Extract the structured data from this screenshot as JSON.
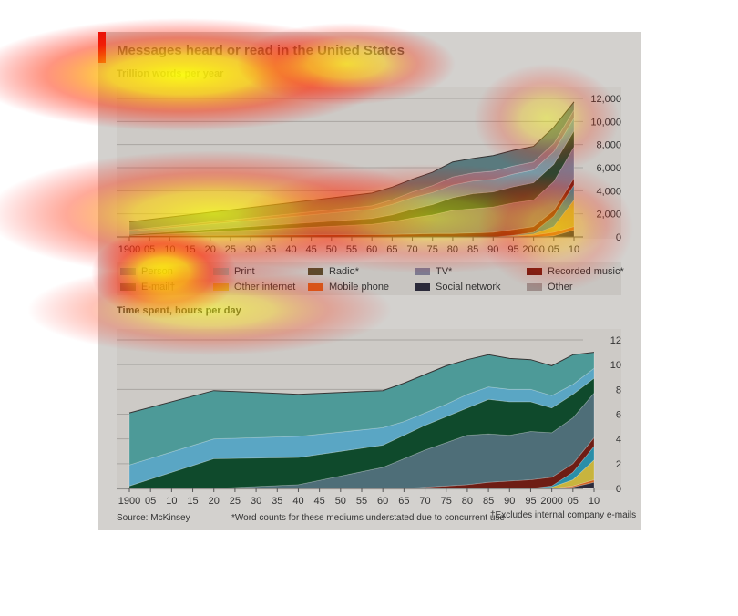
{
  "title": "Messages heard or read in the United States",
  "source": "Source: McKinsey",
  "footnote_star": "*Word counts for these mediums understated due to concurrent use",
  "footnote_dagger": "†Excludes internal company e-mails",
  "legend": [
    {
      "label": "Person",
      "color": "#79909a"
    },
    {
      "label": "Print",
      "color": "#8cc0b8"
    },
    {
      "label": "Radio*",
      "color": "#5c4a2c"
    },
    {
      "label": "TV*",
      "color": "#7d7a90"
    },
    {
      "label": "Recorded music*",
      "color": "#6e1d14"
    },
    {
      "label": "E-mail†",
      "color": "#6a8a6c"
    },
    {
      "label": "Other internet",
      "color": "#c8b43e"
    },
    {
      "label": "Mobile phone",
      "color": "#d0601e"
    },
    {
      "label": "Social network",
      "color": "#2b2a3a"
    },
    {
      "label": "Other",
      "color": "#9d8d8a"
    }
  ],
  "chart_data": [
    {
      "type": "area",
      "subtitle": "Trillion words per year",
      "stacked": true,
      "x": [
        1900,
        1960,
        1965,
        1970,
        1975,
        1980,
        1985,
        1990,
        1995,
        2000,
        2005,
        2010
      ],
      "x_tick_labels": [
        "1900",
        "05",
        "10",
        "15",
        "20",
        "25",
        "30",
        "35",
        "40",
        "45",
        "50",
        "55",
        "60",
        "65",
        "70",
        "75",
        "80",
        "85",
        "90",
        "95",
        "2000",
        "05",
        "10"
      ],
      "y_ticks": [
        "0",
        "2,000",
        "4,000",
        "6,000",
        "8,000",
        "10,000",
        "12,000"
      ],
      "ylim": [
        0,
        12000
      ],
      "series": [
        {
          "name": "Social network",
          "color": "#2b2a3a",
          "values": [
            0,
            0,
            0,
            0,
            0,
            0,
            0,
            0,
            0,
            0,
            100,
            600
          ]
        },
        {
          "name": "Mobile phone",
          "color": "#d0601e",
          "values": [
            0,
            0,
            0,
            0,
            0,
            0,
            0,
            0,
            50,
            150,
            300,
            300
          ]
        },
        {
          "name": "Other internet",
          "color": "#c8b43e",
          "values": [
            0,
            0,
            0,
            0,
            0,
            0,
            0,
            0,
            50,
            100,
            500,
            2300
          ]
        },
        {
          "name": "E-mail†",
          "color": "#2a8ea8",
          "values": [
            0,
            0,
            0,
            0,
            0,
            0,
            0,
            0,
            50,
            150,
            900,
            1300
          ]
        },
        {
          "name": "Recorded music*",
          "color": "#6e1d14",
          "values": [
            100,
            200,
            220,
            250,
            300,
            300,
            350,
            400,
            500,
            500,
            500,
            600
          ]
        },
        {
          "name": "TV*",
          "color": "#7d7a90",
          "values": [
            0,
            900,
            1100,
            1400,
            1600,
            2000,
            2100,
            2200,
            2300,
            2300,
            2500,
            2700
          ]
        },
        {
          "name": "Radio*",
          "color": "#1e4a34",
          "values": [
            100,
            500,
            600,
            750,
            900,
            1100,
            1300,
            1300,
            1400,
            1500,
            1500,
            1400
          ]
        },
        {
          "name": "Print",
          "color": "#72a0ad",
          "values": [
            300,
            800,
            900,
            1000,
            1050,
            1100,
            1100,
            1100,
            1100,
            1100,
            1100,
            1100
          ]
        },
        {
          "name": "Other",
          "color": "#8a7d8c",
          "values": [
            100,
            300,
            400,
            500,
            600,
            700,
            700,
            700,
            700,
            700,
            700,
            700
          ]
        },
        {
          "name": "Person",
          "color": "#5a7a7e",
          "values": [
            700,
            1100,
            1100,
            1100,
            1150,
            1300,
            1250,
            1350,
            1350,
            1350,
            1400,
            700
          ]
        }
      ]
    },
    {
      "type": "area",
      "subtitle": "Time spent, hours per day",
      "stacked": true,
      "x": [
        1900,
        1920,
        1940,
        1960,
        1965,
        1970,
        1975,
        1980,
        1985,
        1990,
        1995,
        2000,
        2005,
        2010
      ],
      "x_tick_labels": [
        "1900",
        "05",
        "10",
        "15",
        "20",
        "25",
        "30",
        "35",
        "40",
        "45",
        "50",
        "55",
        "60",
        "65",
        "70",
        "75",
        "80",
        "85",
        "90",
        "95",
        "2000",
        "05",
        "10"
      ],
      "y_ticks": [
        "0",
        "2",
        "4",
        "6",
        "8",
        "10",
        "12"
      ],
      "ylim": [
        0,
        12
      ],
      "series": [
        {
          "name": "Social network",
          "color": "#2b2a3a",
          "values": [
            0,
            0,
            0,
            0,
            0,
            0,
            0,
            0,
            0,
            0,
            0,
            0,
            0.1,
            0.5
          ]
        },
        {
          "name": "Mobile phone",
          "color": "#d0601e",
          "values": [
            0,
            0,
            0,
            0,
            0,
            0,
            0,
            0,
            0,
            0,
            0,
            0,
            0.1,
            0.2
          ]
        },
        {
          "name": "Other internet",
          "color": "#c8b43e",
          "values": [
            0,
            0,
            0,
            0,
            0,
            0,
            0,
            0,
            0,
            0,
            0,
            0.1,
            0.5,
            1.6
          ]
        },
        {
          "name": "E-mail†",
          "color": "#2a8ea8",
          "values": [
            0,
            0,
            0,
            0,
            0,
            0,
            0,
            0,
            0,
            0,
            0,
            0.1,
            0.6,
            1.1
          ]
        },
        {
          "name": "Recorded music*",
          "color": "#6e1d14",
          "values": [
            0,
            0,
            0,
            0,
            0,
            0.1,
            0.2,
            0.3,
            0.5,
            0.6,
            0.7,
            0.7,
            0.7,
            0.7
          ]
        },
        {
          "name": "TV*",
          "color": "#4e6e78",
          "values": [
            0,
            0,
            0.3,
            1.7,
            2.4,
            3.0,
            3.5,
            4.0,
            3.9,
            3.7,
            3.9,
            3.6,
            3.7,
            3.6
          ]
        },
        {
          "name": "Radio*",
          "color": "#0f4a2c",
          "values": [
            0.2,
            2.4,
            2.2,
            1.8,
            1.9,
            2.0,
            2.1,
            2.2,
            2.8,
            2.7,
            2.4,
            2.0,
            1.9,
            1.2
          ]
        },
        {
          "name": "Print",
          "color": "#5aa6c4",
          "values": [
            1.7,
            1.6,
            1.7,
            1.4,
            1.1,
            1.0,
            1.0,
            1.1,
            1.0,
            1.0,
            1.0,
            1.0,
            0.8,
            0.8
          ]
        },
        {
          "name": "Person",
          "color": "#4d9a98",
          "values": [
            4.2,
            3.9,
            3.4,
            3.0,
            3.1,
            3.1,
            3.1,
            2.8,
            2.6,
            2.5,
            2.4,
            2.4,
            2.4,
            1.3
          ]
        }
      ]
    }
  ]
}
